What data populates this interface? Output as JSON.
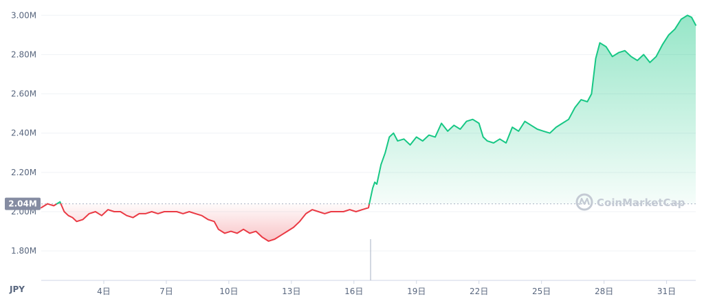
{
  "chart_data": {
    "type": "area",
    "currency": "JPY",
    "reference_label": "2.04M",
    "reference_value": 2.04,
    "y_unit": "M JPY",
    "ylim": [
      1.65,
      3.05
    ],
    "y_ticks": [
      {
        "value": 1.8,
        "label": "1.80M"
      },
      {
        "value": 2.0,
        "label": "2.00M"
      },
      {
        "value": 2.2,
        "label": "2.20M"
      },
      {
        "value": 2.4,
        "label": "2.40M"
      },
      {
        "value": 2.6,
        "label": "2.60M"
      },
      {
        "value": 2.8,
        "label": "2.80M"
      },
      {
        "value": 3.0,
        "label": "3.00M"
      }
    ],
    "xlim": [
      1,
      32.4
    ],
    "x_ticks": [
      {
        "value": 4,
        "label": "4日"
      },
      {
        "value": 7,
        "label": "7日"
      },
      {
        "value": 10,
        "label": "10日"
      },
      {
        "value": 13,
        "label": "13日"
      },
      {
        "value": 16,
        "label": "16日"
      },
      {
        "value": 19,
        "label": "19日"
      },
      {
        "value": 22,
        "label": "22日"
      },
      {
        "value": 25,
        "label": "25日"
      },
      {
        "value": 28,
        "label": "28日"
      },
      {
        "value": 31,
        "label": "31日"
      }
    ],
    "series": [
      {
        "x": [
          1.0,
          1.3,
          1.6,
          1.9,
          2.1,
          2.3,
          2.5,
          2.7,
          3.0,
          3.3,
          3.6,
          3.9,
          4.2,
          4.5,
          4.8,
          5.1,
          5.4,
          5.7,
          6.0,
          6.3,
          6.6,
          6.9,
          7.2,
          7.5,
          7.8,
          8.1,
          8.4,
          8.7,
          9.0,
          9.3,
          9.5,
          9.8,
          10.1,
          10.4,
          10.7,
          11.0,
          11.3,
          11.6,
          11.9,
          12.2,
          12.5,
          12.8,
          13.1,
          13.4,
          13.7,
          14.0,
          14.3,
          14.6,
          14.9,
          15.2,
          15.5,
          15.8,
          16.1,
          16.4,
          16.7,
          16.9,
          17.0,
          17.1,
          17.3,
          17.5,
          17.7,
          17.9,
          18.1,
          18.4,
          18.7,
          19.0,
          19.3,
          19.6,
          19.9,
          20.2,
          20.5,
          20.8,
          21.1,
          21.4,
          21.7,
          22.0,
          22.2,
          22.4,
          22.7,
          23.0,
          23.3,
          23.6,
          23.9,
          24.2,
          24.5,
          24.8,
          25.1,
          25.4,
          25.7,
          26.0,
          26.3,
          26.6,
          26.9,
          27.2,
          27.4,
          27.6,
          27.8,
          28.1,
          28.4,
          28.7,
          29.0,
          29.3,
          29.6,
          29.9,
          30.2,
          30.5,
          30.8,
          31.1,
          31.4,
          31.7,
          32.0,
          32.2,
          32.4
        ],
        "y": [
          2.02,
          2.04,
          2.03,
          2.05,
          2.0,
          1.98,
          1.97,
          1.95,
          1.96,
          1.99,
          2.0,
          1.98,
          2.01,
          2.0,
          2.0,
          1.98,
          1.97,
          1.99,
          1.99,
          2.0,
          1.99,
          2.0,
          2.0,
          2.0,
          1.99,
          2.0,
          1.99,
          1.98,
          1.96,
          1.95,
          1.91,
          1.89,
          1.9,
          1.89,
          1.91,
          1.89,
          1.9,
          1.87,
          1.85,
          1.86,
          1.88,
          1.9,
          1.92,
          1.95,
          1.99,
          2.01,
          2.0,
          1.99,
          2.0,
          2.0,
          2.0,
          2.01,
          2.0,
          2.01,
          2.02,
          2.12,
          2.15,
          2.14,
          2.24,
          2.3,
          2.38,
          2.4,
          2.36,
          2.37,
          2.34,
          2.38,
          2.36,
          2.39,
          2.38,
          2.45,
          2.41,
          2.44,
          2.42,
          2.46,
          2.47,
          2.45,
          2.38,
          2.36,
          2.35,
          2.37,
          2.35,
          2.43,
          2.41,
          2.46,
          2.44,
          2.42,
          2.41,
          2.4,
          2.43,
          2.45,
          2.47,
          2.53,
          2.57,
          2.56,
          2.6,
          2.78,
          2.86,
          2.84,
          2.79,
          2.81,
          2.82,
          2.79,
          2.77,
          2.8,
          2.76,
          2.79,
          2.85,
          2.9,
          2.93,
          2.98,
          3.0,
          2.99,
          2.95
        ]
      }
    ]
  },
  "watermark": {
    "text": "CoinMarketCap",
    "icon": "coinmarketcap-logo-icon"
  },
  "colors": {
    "up": "#16c784",
    "down": "#ea3943",
    "reference_box": "#858ca2",
    "axis_text": "#58667e",
    "grid": "#eff2f5"
  }
}
